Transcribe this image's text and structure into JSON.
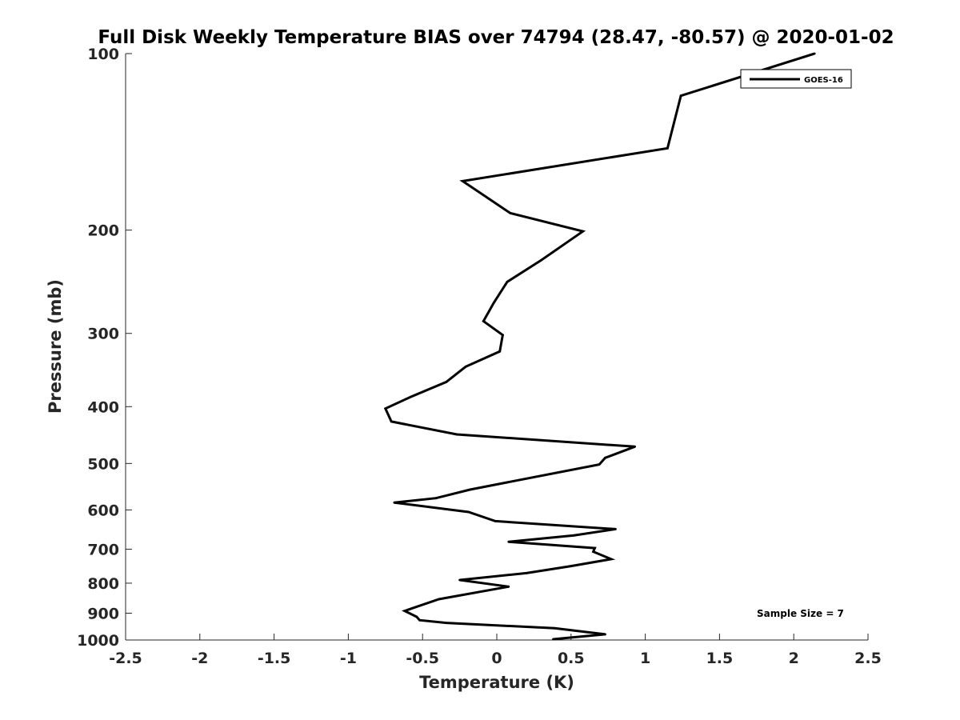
{
  "chart_data": {
    "type": "line",
    "title": "Full Disk Weekly Temperature BIAS over 74794 (28.47, -80.57) @ 2020-01-02",
    "xlabel": "Temperature (K)",
    "ylabel": "Pressure (mb)",
    "xlim": [
      -2.5,
      2.5
    ],
    "ylim": [
      100,
      1000
    ],
    "yscale": "log",
    "y_reversed": true,
    "xticks": [
      -2.5,
      -2,
      -1.5,
      -1,
      -0.5,
      0,
      0.5,
      1,
      1.5,
      2,
      2.5
    ],
    "xtick_labels": [
      "-2.5",
      "-2",
      "-1.5",
      "-1",
      "-0.5",
      "0",
      "0.5",
      "1",
      "1.5",
      "2",
      "2.5"
    ],
    "yticks": [
      100,
      200,
      300,
      400,
      500,
      600,
      700,
      800,
      900,
      1000
    ],
    "ytick_labels": [
      "100",
      "200",
      "300",
      "400",
      "500",
      "600",
      "700",
      "800",
      "900",
      "1000"
    ],
    "grid": false,
    "legend_position": "top-right",
    "annotation": "Sample Size = 7",
    "series": [
      {
        "name": "GOES-16",
        "color": "#000000",
        "points": [
          [
            2.14,
            100
          ],
          [
            1.24,
            118
          ],
          [
            1.15,
            145
          ],
          [
            -0.23,
            165
          ],
          [
            0.09,
            187
          ],
          [
            0.58,
            201
          ],
          [
            0.3,
            225
          ],
          [
            0.07,
            245
          ],
          [
            -0.02,
            266
          ],
          [
            -0.09,
            286
          ],
          [
            0.04,
            302
          ],
          [
            0.02,
            322
          ],
          [
            -0.21,
            342
          ],
          [
            -0.34,
            363
          ],
          [
            -0.58,
            385
          ],
          [
            -0.75,
            403
          ],
          [
            -0.71,
            424
          ],
          [
            -0.27,
            446
          ],
          [
            0.93,
            468
          ],
          [
            0.73,
            489
          ],
          [
            0.69,
            502
          ],
          [
            -0.18,
            554
          ],
          [
            -0.41,
            573
          ],
          [
            -0.69,
            583
          ],
          [
            -0.19,
            605
          ],
          [
            -0.01,
            627
          ],
          [
            0.8,
            647
          ],
          [
            0.52,
            663
          ],
          [
            0.08,
            680
          ],
          [
            0.66,
            697
          ],
          [
            0.65,
            707
          ],
          [
            0.77,
            728
          ],
          [
            0.5,
            748
          ],
          [
            0.2,
            769
          ],
          [
            -0.25,
            790
          ],
          [
            0.08,
            811
          ],
          [
            -0.39,
            852
          ],
          [
            -0.62,
            892
          ],
          [
            -0.54,
            913
          ],
          [
            -0.52,
            925
          ],
          [
            -0.34,
            935
          ],
          [
            0.39,
            955
          ],
          [
            0.73,
            978
          ],
          [
            0.38,
            997
          ]
        ]
      }
    ]
  }
}
